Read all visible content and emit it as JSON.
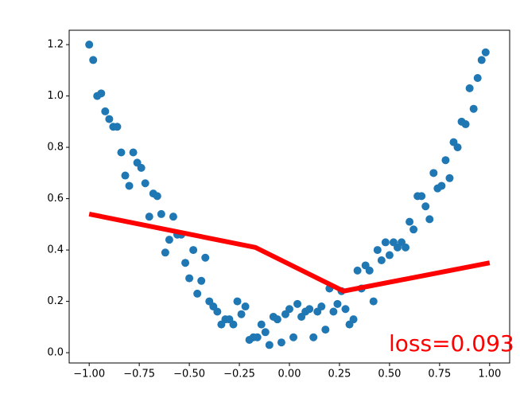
{
  "chart_data": {
    "type": "scatter",
    "annotation": "loss=0.093",
    "xlim": [
      -1.1,
      1.1
    ],
    "ylim": [
      -0.04,
      1.256
    ],
    "xticks": [
      {
        "value": -1,
        "label": "−1.00"
      },
      {
        "value": -0.75,
        "label": "−0.75"
      },
      {
        "value": -0.5,
        "label": "−0.50"
      },
      {
        "value": -0.25,
        "label": "−0.25"
      },
      {
        "value": 0,
        "label": "0.00"
      },
      {
        "value": 0.25,
        "label": "0.25"
      },
      {
        "value": 0.5,
        "label": "0.50"
      },
      {
        "value": 0.75,
        "label": "0.75"
      },
      {
        "value": 1,
        "label": "1.00"
      }
    ],
    "yticks": [
      {
        "value": 0,
        "label": "0.0"
      },
      0.2,
      0.4,
      0.6,
      0.8,
      {
        "value": 1,
        "label": "1.0"
      },
      1.2
    ],
    "series": [
      {
        "type": "scatter",
        "color": "#1f77b4",
        "x": [
          -1.0,
          -0.98,
          -0.96,
          -0.94,
          -0.92,
          -0.9,
          -0.88,
          -0.86,
          -0.84,
          -0.82,
          -0.8,
          -0.78,
          -0.76,
          -0.74,
          -0.72,
          -0.7,
          -0.68,
          -0.66,
          -0.64,
          -0.62,
          -0.6,
          -0.58,
          -0.56,
          -0.54,
          -0.52,
          -0.5,
          -0.48,
          -0.46,
          -0.44,
          -0.42,
          -0.4,
          -0.38,
          -0.36,
          -0.34,
          -0.32,
          -0.3,
          -0.28,
          -0.26,
          -0.24,
          -0.22,
          -0.2,
          -0.18,
          -0.16,
          -0.14,
          -0.12,
          -0.1,
          -0.08,
          -0.06,
          -0.04,
          -0.02,
          0.0,
          0.02,
          0.04,
          0.06,
          0.08,
          0.1,
          0.12,
          0.14,
          0.16,
          0.18,
          0.2,
          0.22,
          0.24,
          0.26,
          0.28,
          0.3,
          0.32,
          0.34,
          0.36,
          0.38,
          0.4,
          0.42,
          0.44,
          0.46,
          0.48,
          0.5,
          0.52,
          0.54,
          0.56,
          0.58,
          0.6,
          0.62,
          0.64,
          0.66,
          0.68,
          0.7,
          0.72,
          0.74,
          0.76,
          0.78,
          0.8,
          0.82,
          0.84,
          0.86,
          0.88,
          0.9,
          0.92,
          0.94,
          0.96,
          0.98
        ],
        "y": [
          1.2,
          1.14,
          1.0,
          1.01,
          0.94,
          0.91,
          0.88,
          0.88,
          0.78,
          0.69,
          0.65,
          0.78,
          0.74,
          0.72,
          0.66,
          0.53,
          0.62,
          0.61,
          0.54,
          0.39,
          0.44,
          0.53,
          0.46,
          0.46,
          0.35,
          0.29,
          0.4,
          0.23,
          0.28,
          0.37,
          0.2,
          0.18,
          0.16,
          0.11,
          0.13,
          0.13,
          0.11,
          0.2,
          0.15,
          0.18,
          0.05,
          0.06,
          0.06,
          0.11,
          0.08,
          0.03,
          0.14,
          0.13,
          0.04,
          0.15,
          0.17,
          0.06,
          0.19,
          0.14,
          0.16,
          0.17,
          0.06,
          0.16,
          0.18,
          0.09,
          0.25,
          0.16,
          0.19,
          0.24,
          0.17,
          0.11,
          0.13,
          0.32,
          0.25,
          0.34,
          0.32,
          0.2,
          0.4,
          0.36,
          0.43,
          0.38,
          0.43,
          0.41,
          0.43,
          0.41,
          0.51,
          0.48,
          0.61,
          0.61,
          0.57,
          0.52,
          0.7,
          0.64,
          0.65,
          0.75,
          0.68,
          0.82,
          0.8,
          0.9,
          0.89,
          1.03,
          0.95,
          1.07,
          1.14,
          1.17
        ]
      },
      {
        "type": "line",
        "color": "#ff0000",
        "x": [
          -1.0,
          -0.17,
          0.27,
          1.0
        ],
        "y": [
          0.54,
          0.41,
          0.24,
          0.35
        ]
      }
    ]
  }
}
